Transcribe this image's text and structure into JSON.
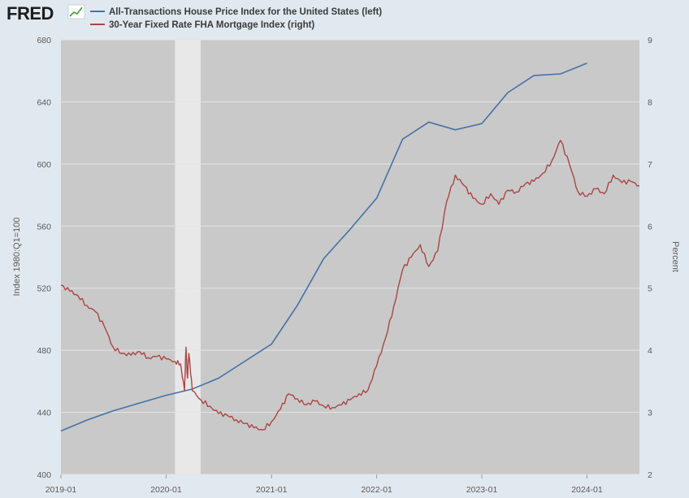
{
  "logo": {
    "text": "FRED"
  },
  "chart_data": {
    "type": "line",
    "legend_position": "top-left",
    "grid": true,
    "colors": {
      "plot_bg": "#c9c9c9",
      "recession": "#e8e8e8",
      "grid": "#e4e4e4",
      "house": "#4572a7",
      "mortgage": "#aa4643"
    },
    "xlabel": "",
    "x_ticks": [
      "2019-01",
      "2020-01",
      "2021-01",
      "2022-01",
      "2023-01",
      "2024-01"
    ],
    "xlim": [
      "2019-01-01",
      "2024-07-01"
    ],
    "recession": {
      "start": "2020-02-01",
      "end": "2020-04-30"
    },
    "ylabel_left": "Index 1980:Q1=100",
    "ylim_left": [
      400,
      680
    ],
    "y_ticks_left": [
      "400",
      "440",
      "480",
      "520",
      "560",
      "600",
      "640",
      "680"
    ],
    "ylabel_right": "Percent",
    "ylim_right": [
      2,
      9
    ],
    "y_ticks_right": [
      "2",
      "3",
      "4",
      "5",
      "6",
      "7",
      "8",
      "9"
    ],
    "series": [
      {
        "name": "All-Transactions House Price Index for the United States (left)",
        "axis": "left",
        "color": "#4572a7",
        "x": [
          "2019-01-01",
          "2019-04-01",
          "2019-07-01",
          "2019-10-01",
          "2020-01-01",
          "2020-04-01",
          "2020-07-01",
          "2020-10-01",
          "2021-01-01",
          "2021-04-01",
          "2021-07-01",
          "2021-10-01",
          "2022-01-01",
          "2022-04-01",
          "2022-07-01",
          "2022-10-01",
          "2023-01-01",
          "2023-04-01",
          "2023-07-01",
          "2023-10-01",
          "2024-01-01"
        ],
        "y": [
          428,
          435,
          441,
          446,
          451,
          455,
          462,
          473,
          484,
          509,
          539,
          558,
          578,
          616,
          627,
          622,
          626,
          646,
          657,
          658,
          665
        ]
      },
      {
        "name": "30-Year Fixed Rate FHA Mortgage Index (right)",
        "axis": "right",
        "color": "#aa4643",
        "x": [
          "2019-01-01",
          "2019-02-01",
          "2019-03-01",
          "2019-04-01",
          "2019-05-01",
          "2019-06-01",
          "2019-07-01",
          "2019-08-01",
          "2019-09-01",
          "2019-10-01",
          "2019-11-01",
          "2019-12-01",
          "2020-01-01",
          "2020-02-01",
          "2020-02-20",
          "2020-03-05",
          "2020-03-10",
          "2020-03-15",
          "2020-03-20",
          "2020-04-01",
          "2020-05-01",
          "2020-06-01",
          "2020-07-01",
          "2020-08-01",
          "2020-09-01",
          "2020-10-01",
          "2020-11-01",
          "2020-12-01",
          "2021-01-01",
          "2021-02-01",
          "2021-03-01",
          "2021-04-01",
          "2021-05-01",
          "2021-06-01",
          "2021-07-01",
          "2021-08-01",
          "2021-09-01",
          "2021-10-01",
          "2021-11-01",
          "2021-12-01",
          "2022-01-01",
          "2022-02-01",
          "2022-03-01",
          "2022-04-01",
          "2022-05-01",
          "2022-06-01",
          "2022-07-01",
          "2022-08-01",
          "2022-09-01",
          "2022-10-01",
          "2022-11-01",
          "2022-12-01",
          "2023-01-01",
          "2023-02-01",
          "2023-03-01",
          "2023-04-01",
          "2023-05-01",
          "2023-06-01",
          "2023-07-01",
          "2023-08-01",
          "2023-09-01",
          "2023-10-01",
          "2023-11-01",
          "2023-12-01",
          "2024-01-01",
          "2024-02-01",
          "2024-03-01",
          "2024-04-01",
          "2024-05-01",
          "2024-06-01",
          "2024-07-01"
        ],
        "y": [
          5.05,
          4.95,
          4.88,
          4.72,
          4.62,
          4.38,
          4.05,
          3.95,
          3.92,
          3.98,
          3.88,
          3.9,
          3.86,
          3.82,
          3.78,
          3.35,
          4.05,
          3.55,
          3.95,
          3.35,
          3.2,
          3.1,
          2.98,
          2.95,
          2.88,
          2.82,
          2.75,
          2.72,
          2.85,
          3.05,
          3.3,
          3.22,
          3.12,
          3.18,
          3.1,
          3.08,
          3.12,
          3.2,
          3.3,
          3.35,
          3.75,
          4.2,
          4.7,
          5.3,
          5.5,
          5.7,
          5.35,
          5.6,
          6.4,
          6.82,
          6.65,
          6.45,
          6.35,
          6.52,
          6.35,
          6.58,
          6.55,
          6.68,
          6.72,
          6.85,
          7.05,
          7.38,
          7.0,
          6.55,
          6.48,
          6.6,
          6.52,
          6.82,
          6.7,
          6.72,
          6.65
        ]
      }
    ]
  }
}
